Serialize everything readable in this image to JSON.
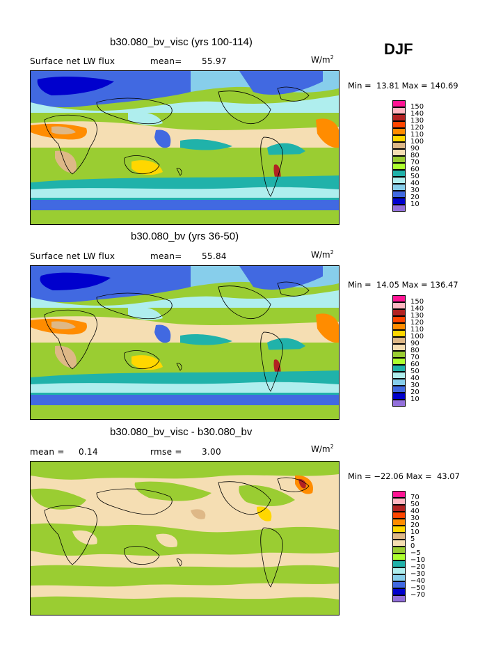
{
  "season": "DJF",
  "panels": [
    {
      "title": "b30.080_bv_visc (yrs 100-114)",
      "left_label": "Surface net LW flux",
      "stat_label": "mean=",
      "stat_value": "55.97",
      "units_base": "W/m",
      "units_exp": "2",
      "min_label": "Min =",
      "min_value": "13.81",
      "max_label": "Max =",
      "max_value": "140.69",
      "levels": [
        "150",
        "140",
        "130",
        "120",
        "110",
        "100",
        "90",
        "80",
        "70",
        "60",
        "50",
        "40",
        "30",
        "20",
        "10"
      ]
    },
    {
      "title": "b30.080_bv (yrs 36-50)",
      "left_label": "Surface net LW flux",
      "stat_label": "mean=",
      "stat_value": "55.84",
      "units_base": "W/m",
      "units_exp": "2",
      "min_label": "Min =",
      "min_value": "14.05",
      "max_label": "Max =",
      "max_value": "136.47",
      "levels": [
        "150",
        "140",
        "130",
        "120",
        "110",
        "100",
        "90",
        "80",
        "70",
        "60",
        "50",
        "40",
        "30",
        "20",
        "10"
      ]
    },
    {
      "title": "b30.080_bv_visc - b30.080_bv",
      "left_label": "mean =",
      "left_value": "0.14",
      "stat_label": "rmse =",
      "stat_value": "3.00",
      "units_base": "W/m",
      "units_exp": "2",
      "min_label": "Min =",
      "min_value": "−22.06",
      "max_label": "Max =",
      "max_value": "43.07",
      "levels": [
        "70",
        "50",
        "40",
        "30",
        "20",
        "10",
        "5",
        "0",
        "−5",
        "−10",
        "−20",
        "−30",
        "−40",
        "−50",
        "−70"
      ]
    }
  ],
  "colorbar_colors": [
    "#ff1493",
    "#ffb6c1",
    "#b22222",
    "#ff4500",
    "#ff8c00",
    "#ffd700",
    "#deb887",
    "#f5deb3",
    "#9acd32",
    "#adff2f",
    "#20b2aa",
    "#afeeee",
    "#87ceeb",
    "#4169e1",
    "#0000cd",
    "#9370db"
  ]
}
